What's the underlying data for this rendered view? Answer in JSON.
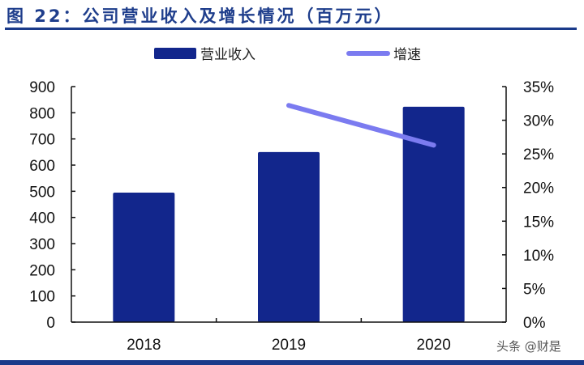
{
  "title": "图 22：公司营业收入及增长情况（百万元）",
  "legend": {
    "bar_label": "营业收入",
    "line_label": "增速"
  },
  "watermark": "头条 @财是",
  "colors": {
    "bar": "#12268c",
    "line": "#7b7bf0",
    "title": "#1f3e8c",
    "rule": "#1a3a8a",
    "axis": "#111111"
  },
  "chart_data": {
    "type": "bar+line",
    "title": "图 22：公司营业收入及增长情况（百万元）",
    "categories": [
      "2018",
      "2019",
      "2020"
    ],
    "series": [
      {
        "name": "营业收入",
        "type": "bar",
        "axis": "left",
        "values": [
          495,
          650,
          823
        ]
      },
      {
        "name": "增速",
        "type": "line",
        "axis": "right",
        "values": [
          null,
          0.322,
          0.263
        ]
      }
    ],
    "left_axis": {
      "ylim": [
        0,
        900
      ],
      "ticks": [
        "0",
        "100",
        "200",
        "300",
        "400",
        "500",
        "600",
        "700",
        "800",
        "900"
      ]
    },
    "right_axis": {
      "ylim": [
        0,
        0.35
      ],
      "ticks": [
        "0%",
        "5%",
        "10%",
        "15%",
        "20%",
        "25%",
        "30%",
        "35%"
      ]
    },
    "xlabel": "",
    "ylabel": "",
    "legend_position": "top",
    "grid": false
  }
}
